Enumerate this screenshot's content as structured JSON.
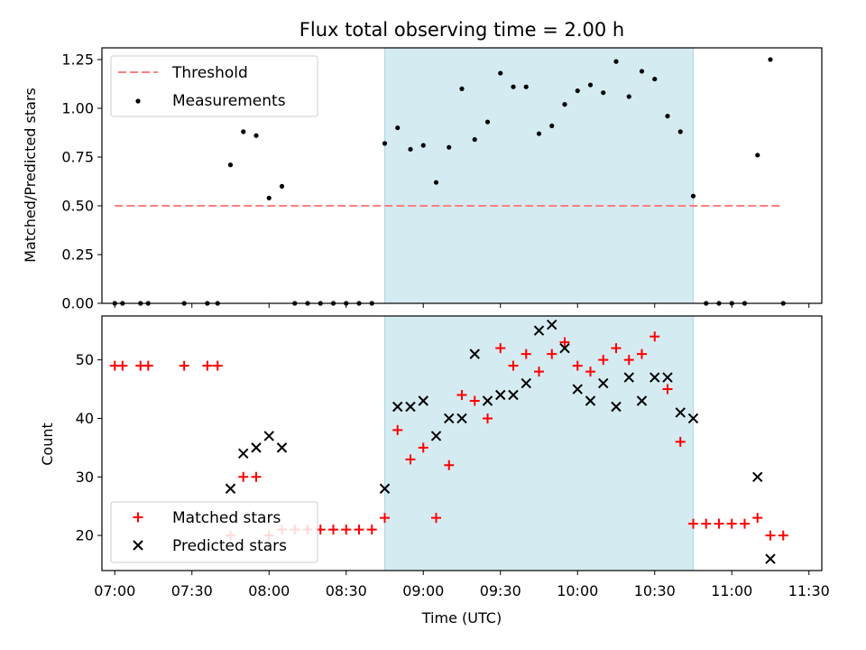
{
  "chart_data": [
    {
      "type": "scatter",
      "title": "Flux total observing time = 2.00 h",
      "xlabel": "",
      "ylabel": "Matched/Predicted stars",
      "xlim": [
        "06:55",
        "11:35"
      ],
      "ylim": [
        0,
        1.31
      ],
      "yticks": [
        "0.00",
        "0.25",
        "0.50",
        "0.75",
        "1.00",
        "1.25"
      ],
      "shaded_span": [
        "08:45",
        "10:45"
      ],
      "shade_color": "#d4ebf1",
      "threshold": {
        "name": "Threshold",
        "value": 0.5,
        "x_range": [
          "07:00",
          "11:20"
        ],
        "color": "#ff7f7f"
      },
      "series": [
        {
          "name": "Measurements",
          "color": "#000000",
          "marker": "dot",
          "points": [
            [
              "07:00",
              0.0
            ],
            [
              "07:03",
              0.0
            ],
            [
              "07:10",
              0.0
            ],
            [
              "07:13",
              0.0
            ],
            [
              "07:27",
              0.0
            ],
            [
              "07:36",
              0.0
            ],
            [
              "07:40",
              0.0
            ],
            [
              "07:45",
              0.71
            ],
            [
              "07:50",
              0.88
            ],
            [
              "07:55",
              0.86
            ],
            [
              "08:00",
              0.54
            ],
            [
              "08:05",
              0.6
            ],
            [
              "08:10",
              0.0
            ],
            [
              "08:15",
              0.0
            ],
            [
              "08:20",
              0.0
            ],
            [
              "08:25",
              0.0
            ],
            [
              "08:30",
              0.0
            ],
            [
              "08:35",
              0.0
            ],
            [
              "08:40",
              0.0
            ],
            [
              "08:45",
              0.82
            ],
            [
              "08:50",
              0.9
            ],
            [
              "08:55",
              0.79
            ],
            [
              "09:00",
              0.81
            ],
            [
              "09:05",
              0.62
            ],
            [
              "09:10",
              0.8
            ],
            [
              "09:15",
              1.1
            ],
            [
              "09:20",
              0.84
            ],
            [
              "09:25",
              0.93
            ],
            [
              "09:30",
              1.18
            ],
            [
              "09:35",
              1.11
            ],
            [
              "09:40",
              1.11
            ],
            [
              "09:45",
              0.87
            ],
            [
              "09:50",
              0.91
            ],
            [
              "09:55",
              1.02
            ],
            [
              "10:00",
              1.09
            ],
            [
              "10:05",
              1.12
            ],
            [
              "10:10",
              1.08
            ],
            [
              "10:15",
              1.24
            ],
            [
              "10:20",
              1.06
            ],
            [
              "10:25",
              1.19
            ],
            [
              "10:30",
              1.15
            ],
            [
              "10:35",
              0.96
            ],
            [
              "10:40",
              0.88
            ],
            [
              "10:45",
              0.55
            ],
            [
              "10:50",
              0.0
            ],
            [
              "10:55",
              0.0
            ],
            [
              "11:00",
              0.0
            ],
            [
              "11:05",
              0.0
            ],
            [
              "11:10",
              0.76
            ],
            [
              "11:15",
              1.25
            ],
            [
              "11:20",
              0.0
            ]
          ]
        }
      ],
      "legend": {
        "position": "top-left",
        "entries": [
          "Threshold",
          "Measurements"
        ]
      },
      "grid": false
    },
    {
      "type": "scatter",
      "title": "",
      "xlabel": "Time (UTC)",
      "ylabel": "Count",
      "xlim": [
        "06:55",
        "11:35"
      ],
      "ylim": [
        14,
        57.5
      ],
      "yticks": [
        "20",
        "30",
        "40",
        "50"
      ],
      "xticks": [
        "07:00",
        "07:30",
        "08:00",
        "08:30",
        "09:00",
        "09:30",
        "10:00",
        "10:30",
        "11:00",
        "11:30"
      ],
      "shaded_span": [
        "08:45",
        "10:45"
      ],
      "shade_color": "#d4ebf1",
      "series": [
        {
          "name": "Matched stars",
          "color": "#ff0000",
          "marker": "plus",
          "points": [
            [
              "07:00",
              49
            ],
            [
              "07:03",
              49
            ],
            [
              "07:10",
              49
            ],
            [
              "07:13",
              49
            ],
            [
              "07:27",
              49
            ],
            [
              "07:36",
              49
            ],
            [
              "07:40",
              49
            ],
            [
              "07:45",
              20
            ],
            [
              "07:50",
              30
            ],
            [
              "07:55",
              30
            ],
            [
              "08:00",
              20
            ],
            [
              "08:05",
              21
            ],
            [
              "08:10",
              21
            ],
            [
              "08:15",
              21
            ],
            [
              "08:20",
              21
            ],
            [
              "08:25",
              21
            ],
            [
              "08:30",
              21
            ],
            [
              "08:35",
              21
            ],
            [
              "08:40",
              21
            ],
            [
              "08:45",
              23
            ],
            [
              "08:50",
              38
            ],
            [
              "08:55",
              33
            ],
            [
              "09:00",
              35
            ],
            [
              "09:05",
              23
            ],
            [
              "09:10",
              32
            ],
            [
              "09:15",
              44
            ],
            [
              "09:20",
              43
            ],
            [
              "09:25",
              40
            ],
            [
              "09:30",
              52
            ],
            [
              "09:35",
              49
            ],
            [
              "09:40",
              51
            ],
            [
              "09:45",
              48
            ],
            [
              "09:50",
              51
            ],
            [
              "09:55",
              53
            ],
            [
              "10:00",
              49
            ],
            [
              "10:05",
              48
            ],
            [
              "10:10",
              50
            ],
            [
              "10:15",
              52
            ],
            [
              "10:20",
              50
            ],
            [
              "10:25",
              51
            ],
            [
              "10:30",
              54
            ],
            [
              "10:35",
              45
            ],
            [
              "10:40",
              36
            ],
            [
              "10:45",
              22
            ],
            [
              "10:50",
              22
            ],
            [
              "10:55",
              22
            ],
            [
              "11:00",
              22
            ],
            [
              "11:05",
              22
            ],
            [
              "11:10",
              23
            ],
            [
              "11:15",
              20
            ],
            [
              "11:20",
              20
            ]
          ]
        },
        {
          "name": "Predicted stars",
          "color": "#000000",
          "marker": "x",
          "points": [
            [
              "07:45",
              28
            ],
            [
              "07:50",
              34
            ],
            [
              "07:55",
              35
            ],
            [
              "08:00",
              37
            ],
            [
              "08:05",
              35
            ],
            [
              "08:45",
              28
            ],
            [
              "08:50",
              42
            ],
            [
              "08:55",
              42
            ],
            [
              "09:00",
              43
            ],
            [
              "09:05",
              37
            ],
            [
              "09:10",
              40
            ],
            [
              "09:15",
              40
            ],
            [
              "09:20",
              51
            ],
            [
              "09:25",
              43
            ],
            [
              "09:30",
              44
            ],
            [
              "09:35",
              44
            ],
            [
              "09:40",
              46
            ],
            [
              "09:45",
              55
            ],
            [
              "09:50",
              56
            ],
            [
              "09:55",
              52
            ],
            [
              "10:00",
              45
            ],
            [
              "10:05",
              43
            ],
            [
              "10:10",
              46
            ],
            [
              "10:15",
              42
            ],
            [
              "10:20",
              47
            ],
            [
              "10:25",
              43
            ],
            [
              "10:30",
              47
            ],
            [
              "10:35",
              47
            ],
            [
              "10:40",
              41
            ],
            [
              "10:45",
              40
            ],
            [
              "11:10",
              30
            ],
            [
              "11:15",
              16
            ]
          ]
        }
      ],
      "legend": {
        "position": "bottom-left",
        "entries": [
          "Matched stars",
          "Predicted stars"
        ]
      },
      "grid": false
    }
  ]
}
